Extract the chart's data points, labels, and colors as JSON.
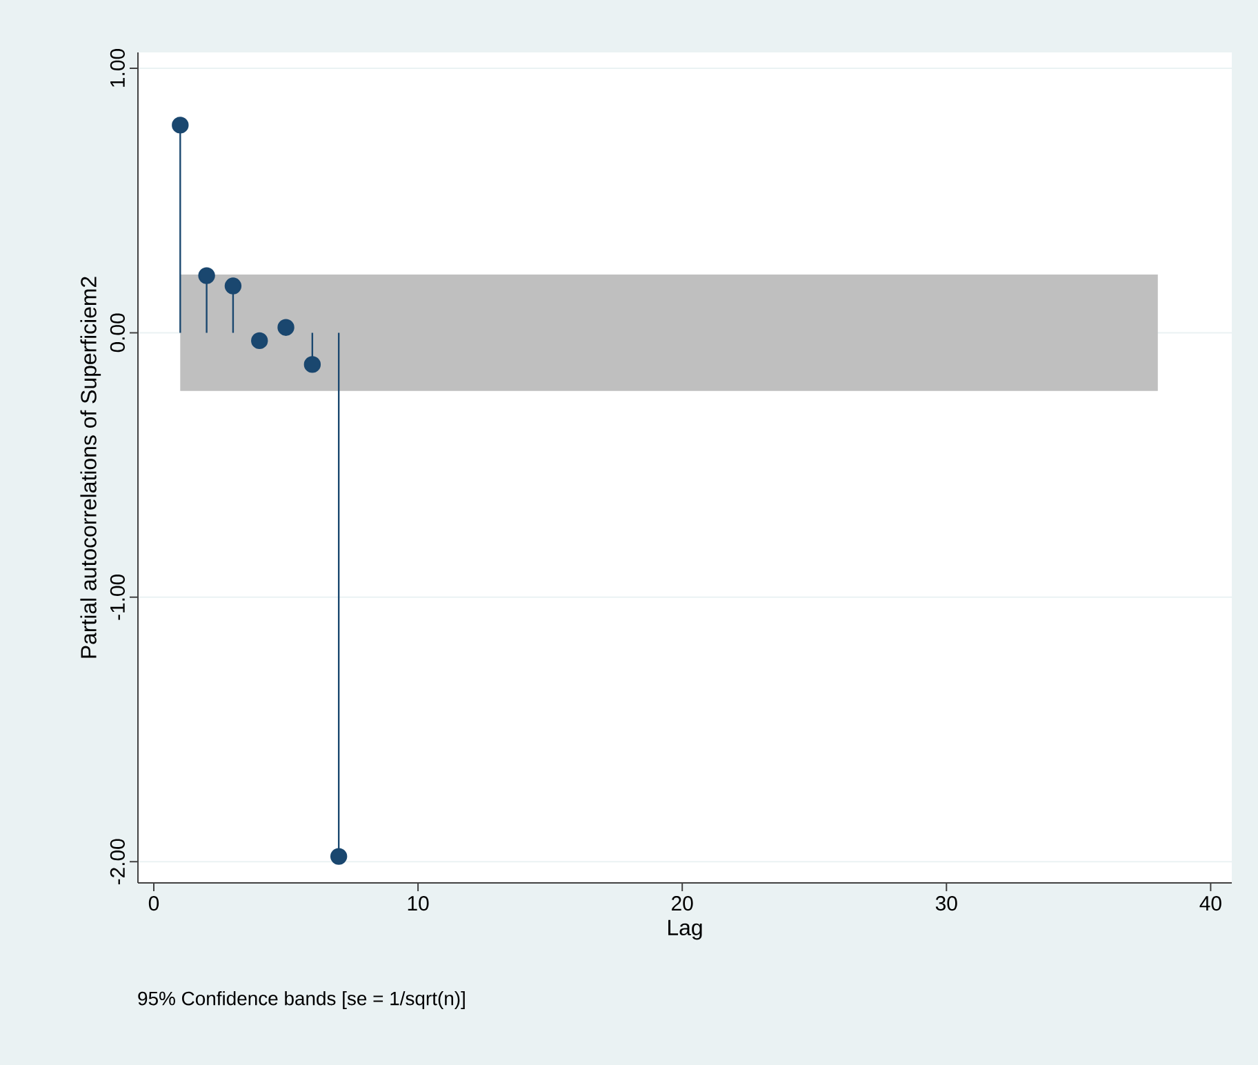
{
  "chart_data": {
    "type": "lollipop",
    "xlabel": "Lag",
    "ylabel": "Partial autocorrelations of Superficiem2",
    "x": [
      1,
      2,
      3,
      4,
      5,
      6,
      7
    ],
    "values": [
      0.785,
      0.216,
      0.177,
      -0.03,
      0.02,
      -0.12,
      -1.98
    ],
    "color": "#1a476f",
    "marker": "circle",
    "xlim": [
      -0.6,
      40.8
    ],
    "xticks": [
      0,
      10,
      20,
      30,
      40
    ],
    "ylim": [
      -2.08,
      1.06
    ],
    "yticks": [
      {
        "value": 1,
        "label": "1.00"
      },
      {
        "value": 0,
        "label": "0.00"
      },
      {
        "value": -1,
        "label": "-1.00"
      },
      {
        "value": -2,
        "label": "-2.00"
      }
    ],
    "grid": "y",
    "bands": [
      {
        "axis": "y",
        "from": -0.22,
        "to": 0.22,
        "color": "#bfbfbf"
      }
    ],
    "annotations": [
      "95% Confidence bands [se = 1/sqrt(n)]"
    ]
  }
}
